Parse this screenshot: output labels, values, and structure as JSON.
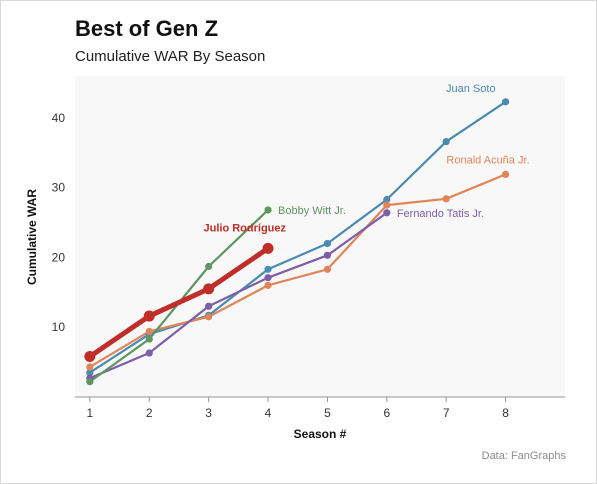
{
  "header": {
    "title": "Best of Gen Z",
    "subtitle": "Cumulative WAR By Season"
  },
  "footer": {
    "source": "Data: FanGraphs"
  },
  "chart_data": {
    "type": "line",
    "title": "Best of Gen Z",
    "subtitle": "Cumulative WAR By Season",
    "xlabel": "Season #",
    "ylabel": "Cumulative WAR",
    "xlim": [
      0.75,
      9.0
    ],
    "ylim": [
      0,
      46
    ],
    "x_ticks": [
      1,
      2,
      3,
      4,
      5,
      6,
      7,
      8
    ],
    "y_ticks": [
      10,
      20,
      30,
      40
    ],
    "grid": false,
    "legend": "direct labels at line ends",
    "background": "#f8f8f8",
    "series": [
      {
        "name": "Juan Soto",
        "color": "#4a8bb0",
        "highlight": false,
        "x": [
          1,
          2,
          3,
          4,
          5,
          6,
          7,
          8
        ],
        "y": [
          3.5,
          9.0,
          11.7,
          18.3,
          22.0,
          28.3,
          36.6,
          42.3
        ]
      },
      {
        "name": "Ronald Acuña Jr.",
        "color": "#e0845a",
        "highlight": false,
        "x": [
          1,
          2,
          3,
          4,
          5,
          6,
          7,
          8
        ],
        "y": [
          4.3,
          9.4,
          11.5,
          16.0,
          18.3,
          27.5,
          28.4,
          31.9
        ]
      },
      {
        "name": "Fernando Tatis Jr.",
        "color": "#7d5fa8",
        "highlight": false,
        "x": [
          1,
          2,
          3,
          4,
          5,
          6
        ],
        "y": [
          2.7,
          6.3,
          13.0,
          17.1,
          20.3,
          26.4
        ]
      },
      {
        "name": "Bobby Witt Jr.",
        "color": "#5f9560",
        "highlight": false,
        "x": [
          1,
          2,
          3,
          4
        ],
        "y": [
          2.2,
          8.3,
          18.7,
          26.8
        ]
      },
      {
        "name": "Julio Rodríguez",
        "color": "#bf2e28",
        "highlight": true,
        "x": [
          1,
          2,
          3,
          4
        ],
        "y": [
          5.8,
          11.6,
          15.5,
          21.3
        ]
      }
    ]
  }
}
